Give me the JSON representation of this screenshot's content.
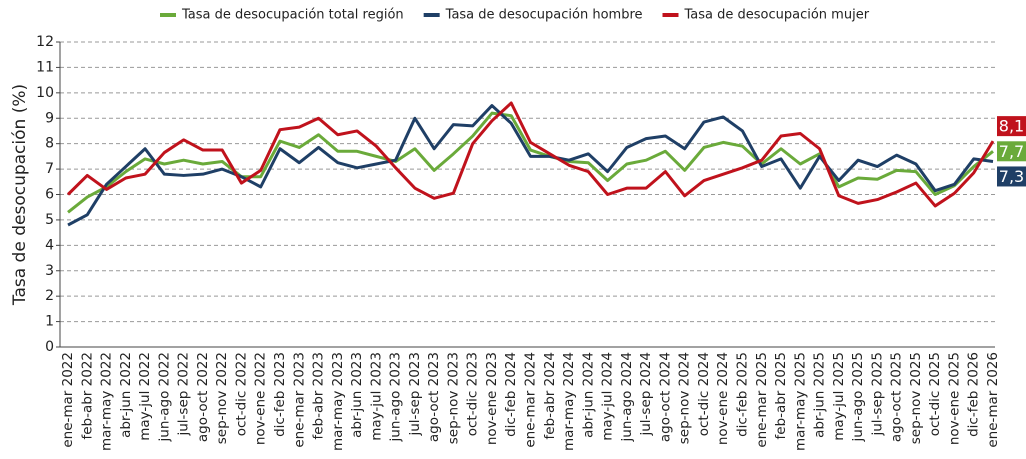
{
  "chart_data": {
    "type": "line",
    "y_label": "Tasa de desocupación (%)",
    "categories": [
      "ene-mar 2022",
      "feb-abr 2022",
      "mar-may 2022",
      "abr-jun 2022",
      "may-jul 2022",
      "jun-ago 2022",
      "jul-sep 2022",
      "ago-oct 2022",
      "sep-nov 2022",
      "oct-dic 2022",
      "nov-ene 2022",
      "dic-feb 2023",
      "ene-mar 2023",
      "feb-abr 2023",
      "mar-may 2023",
      "abr-jun 2023",
      "may-jul 2023",
      "jun-ago 2023",
      "jul-sep 2023",
      "ago-oct 2023",
      "sep-nov 2023",
      "oct-dic 2023",
      "nov-ene 2023",
      "dic-feb 2024",
      "ene-mar 2024",
      "feb-abr 2024",
      "mar-may 2024",
      "abr-jun 2024",
      "may-jul 2024",
      "jun-ago 2024",
      "jul-sep 2024",
      "ago-oct 2024",
      "sep-nov 2024",
      "oct-dic 2024",
      "nov-ene 2024",
      "dic-feb 2025",
      "ene-mar 2025",
      "feb-abr 2025",
      "mar-may 2025",
      "abr-jun 2025",
      "may-jul 2025",
      "jun-ago 2025",
      "jul-sep 2025",
      "ago-oct 2025",
      "sep-nov 2025",
      "oct-dic 2025",
      "nov-ene 2025",
      "dic-feb 2026",
      "ene-mar 2026"
    ],
    "series": [
      {
        "name": "Tasa de desocupación total región",
        "color": "#6aaa3a",
        "values": [
          5.3,
          5.9,
          6.3,
          6.9,
          7.4,
          7.2,
          7.35,
          7.2,
          7.3,
          6.7,
          6.7,
          8.1,
          7.85,
          8.35,
          7.7,
          7.7,
          7.5,
          7.3,
          7.8,
          6.95,
          7.6,
          8.3,
          9.2,
          9.1,
          7.75,
          7.5,
          7.3,
          7.25,
          6.55,
          7.2,
          7.35,
          7.7,
          6.95,
          7.85,
          8.05,
          7.9,
          7.2,
          7.8,
          7.2,
          7.6,
          6.3,
          6.65,
          6.6,
          6.95,
          6.9,
          6.0,
          6.35,
          7.1,
          7.7
        ],
        "value_labels": [
          null,
          null,
          null,
          null,
          null,
          null,
          null,
          null,
          null,
          null,
          null,
          null,
          null,
          null,
          null,
          null,
          null,
          null,
          null,
          null,
          null,
          null,
          null,
          null,
          null,
          null,
          null,
          null,
          null,
          null,
          null,
          null,
          null,
          null,
          null,
          null,
          null,
          null,
          null,
          null,
          null,
          null,
          null,
          null,
          null,
          null,
          null,
          null,
          "7,7"
        ]
      },
      {
        "name": "Tasa de desocupación hombre",
        "color": "#1f3f66",
        "values": [
          4.8,
          5.2,
          6.4,
          7.1,
          7.8,
          6.8,
          6.75,
          6.8,
          7.0,
          6.7,
          6.3,
          7.8,
          7.25,
          7.85,
          7.25,
          7.05,
          7.2,
          7.35,
          9.0,
          7.8,
          8.75,
          8.7,
          9.5,
          8.8,
          7.5,
          7.5,
          7.35,
          7.6,
          6.9,
          7.85,
          8.2,
          8.3,
          7.8,
          8.85,
          9.05,
          8.5,
          7.1,
          7.4,
          6.25,
          7.5,
          6.55,
          7.35,
          7.1,
          7.55,
          7.2,
          6.15,
          6.4,
          7.4,
          7.3
        ],
        "value_labels": [
          null,
          null,
          null,
          null,
          null,
          null,
          null,
          null,
          null,
          null,
          null,
          null,
          null,
          null,
          null,
          null,
          null,
          null,
          null,
          null,
          null,
          null,
          null,
          null,
          null,
          null,
          null,
          null,
          null,
          null,
          null,
          null,
          null,
          null,
          null,
          null,
          null,
          null,
          null,
          null,
          null,
          null,
          null,
          null,
          null,
          null,
          null,
          null,
          "7,3"
        ]
      },
      {
        "name": "Tasa de desocupación mujer",
        "color": "#c0121c",
        "values": [
          6.0,
          6.75,
          6.2,
          6.65,
          6.8,
          7.65,
          8.15,
          7.75,
          7.75,
          6.45,
          6.95,
          8.55,
          8.65,
          9.0,
          8.35,
          8.5,
          7.9,
          7.05,
          6.25,
          5.85,
          6.05,
          8.0,
          8.9,
          9.6,
          8.05,
          7.6,
          7.15,
          6.9,
          6.0,
          6.25,
          6.25,
          6.9,
          5.95,
          6.55,
          6.8,
          7.05,
          7.35,
          8.3,
          8.4,
          7.8,
          5.95,
          5.65,
          5.8,
          6.1,
          6.45,
          5.55,
          6.05,
          6.85,
          8.1
        ],
        "value_labels": [
          null,
          null,
          null,
          null,
          null,
          null,
          null,
          null,
          null,
          null,
          null,
          null,
          null,
          null,
          null,
          null,
          null,
          null,
          null,
          null,
          null,
          null,
          null,
          null,
          null,
          null,
          null,
          null,
          null,
          null,
          null,
          null,
          null,
          null,
          null,
          null,
          null,
          null,
          null,
          null,
          null,
          null,
          null,
          null,
          null,
          null,
          null,
          null,
          "8,1"
        ]
      }
    ],
    "ylim": [
      0,
      12
    ],
    "yticks": [
      0,
      1,
      2,
      3,
      4,
      5,
      6,
      7,
      8,
      9,
      10,
      11,
      12
    ],
    "grid": true
  }
}
